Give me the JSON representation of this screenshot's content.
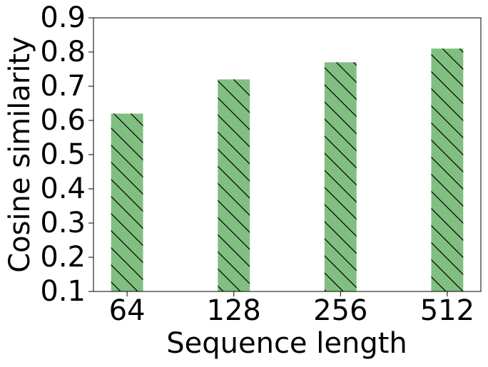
{
  "chart_data": {
    "type": "bar",
    "x_label": "Sequence length",
    "y_label": "Cosine similarity",
    "categories": [
      "64",
      "128",
      "256",
      "512"
    ],
    "values": [
      0.62,
      0.72,
      0.77,
      0.81
    ],
    "color": "#80bf80",
    "ylim": [
      0.1,
      0.9
    ],
    "yticks": [
      0.1,
      0.2,
      0.3,
      0.4,
      0.5,
      0.6,
      0.7,
      0.8,
      0.9
    ],
    "grid": false
  }
}
